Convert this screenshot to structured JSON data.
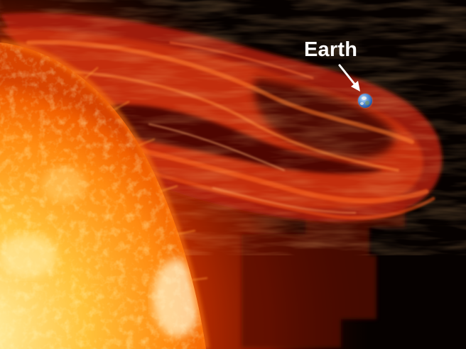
{
  "annotation": {
    "label": "Earth"
  }
}
